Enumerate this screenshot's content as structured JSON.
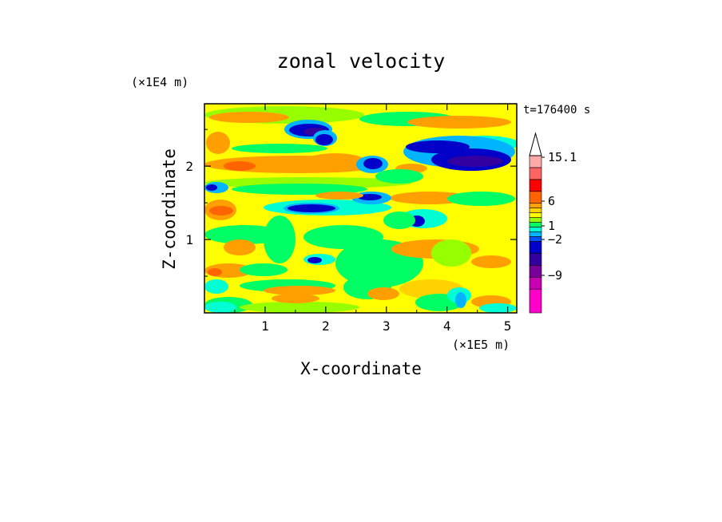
{
  "chart_data": {
    "type": "heatmap",
    "title": "zonal velocity",
    "xlabel": "X-coordinate",
    "ylabel": "Z-coordinate",
    "x_unit_label": "(×1E5 m)",
    "y_unit_label": "(×1E4 m)",
    "time_label": "t=176400 s",
    "xlim": [
      0,
      5.15
    ],
    "ylim": [
      0,
      2.85
    ],
    "x_ticks": [
      "1",
      "2",
      "3",
      "4",
      "5"
    ],
    "y_ticks": [
      "1",
      "2"
    ],
    "colorbar": {
      "levels": [
        {
          "color": "#ff00c8"
        },
        {
          "color": "#c800b4"
        },
        {
          "color": "#78009a"
        },
        {
          "color": "#3200a0"
        },
        {
          "color": "#0000c8"
        },
        {
          "color": "#0050ff"
        },
        {
          "color": "#00b4ff"
        },
        {
          "color": "#00ffd2"
        },
        {
          "color": "#00ff64"
        },
        {
          "color": "#96ff00"
        },
        {
          "color": "#ffff00"
        },
        {
          "color": "#ffd200"
        },
        {
          "color": "#ffa000"
        },
        {
          "color": "#ff6400"
        },
        {
          "color": "#ff0000"
        },
        {
          "color": "#ff6464"
        },
        {
          "color": "#ffaaaa"
        }
      ],
      "labels": [
        "15.1",
        "6",
        "1",
        "-2",
        "-9"
      ],
      "triangle_color": "#ffffff"
    },
    "field_colors": {
      "background": "#ffff00",
      "orange": "#ffa000",
      "dark_orange": "#ff6400",
      "light_orange": "#ffd200",
      "green": "#00ff64",
      "lime": "#96ff00",
      "cyan": "#00ffd2",
      "sky": "#00b4ff",
      "blue": "#0000c8",
      "navy": "#3200a0"
    }
  }
}
